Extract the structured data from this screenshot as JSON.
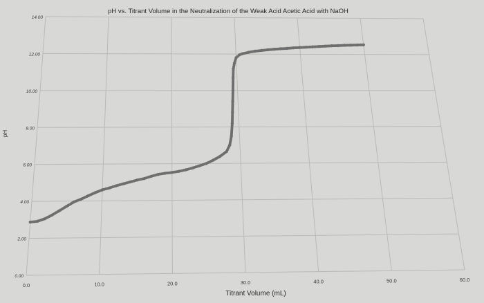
{
  "chart_data": {
    "type": "scatter",
    "title": "pH vs. Titrant Volume in the Neutralization of the Weak Acid Acetic Acid with NaOH",
    "xlabel": "Titrant Volume (mL)",
    "ylabel": "pH",
    "xlim": [
      0,
      60
    ],
    "ylim": [
      0,
      14
    ],
    "x_ticks": [
      "0.0",
      "10.0",
      "20.0",
      "30.0",
      "40.0",
      "50.0",
      "60.0"
    ],
    "y_ticks": [
      "0.00",
      "2.00",
      "4.00",
      "6.00",
      "8.00",
      "10.00",
      "12.00",
      "14.00"
    ],
    "grid": true,
    "legend": "none",
    "marker_color": "#6e6e6e",
    "series": [
      {
        "x": [
          0,
          1,
          2,
          3,
          4,
          5,
          6,
          7,
          8,
          9,
          10,
          11,
          12,
          13,
          14,
          15,
          16,
          17,
          18,
          19,
          20,
          21,
          22,
          23,
          24,
          25,
          26,
          27,
          28,
          28.5,
          28.8,
          29.0,
          29.1,
          29.2,
          29.3,
          29.4,
          29.5,
          29.7,
          30.0,
          30.5,
          31,
          32,
          33,
          34,
          35,
          36,
          37,
          38,
          39,
          40,
          41,
          42,
          43,
          44,
          45,
          46,
          47,
          48,
          49,
          50
        ],
        "y": [
          2.88,
          2.92,
          3.05,
          3.25,
          3.48,
          3.72,
          3.95,
          4.1,
          4.28,
          4.45,
          4.6,
          4.7,
          4.82,
          4.92,
          5.02,
          5.12,
          5.2,
          5.32,
          5.42,
          5.48,
          5.52,
          5.58,
          5.66,
          5.76,
          5.88,
          6.0,
          6.18,
          6.38,
          6.65,
          7.0,
          7.5,
          8.2,
          8.8,
          9.4,
          10.0,
          10.7,
          11.2,
          11.5,
          11.8,
          11.95,
          12.02,
          12.1,
          12.16,
          12.2,
          12.24,
          12.27,
          12.3,
          12.32,
          12.35,
          12.37,
          12.39,
          12.41,
          12.43,
          12.45,
          12.47,
          12.48,
          12.5,
          12.51,
          12.52,
          12.53
        ]
      }
    ]
  }
}
